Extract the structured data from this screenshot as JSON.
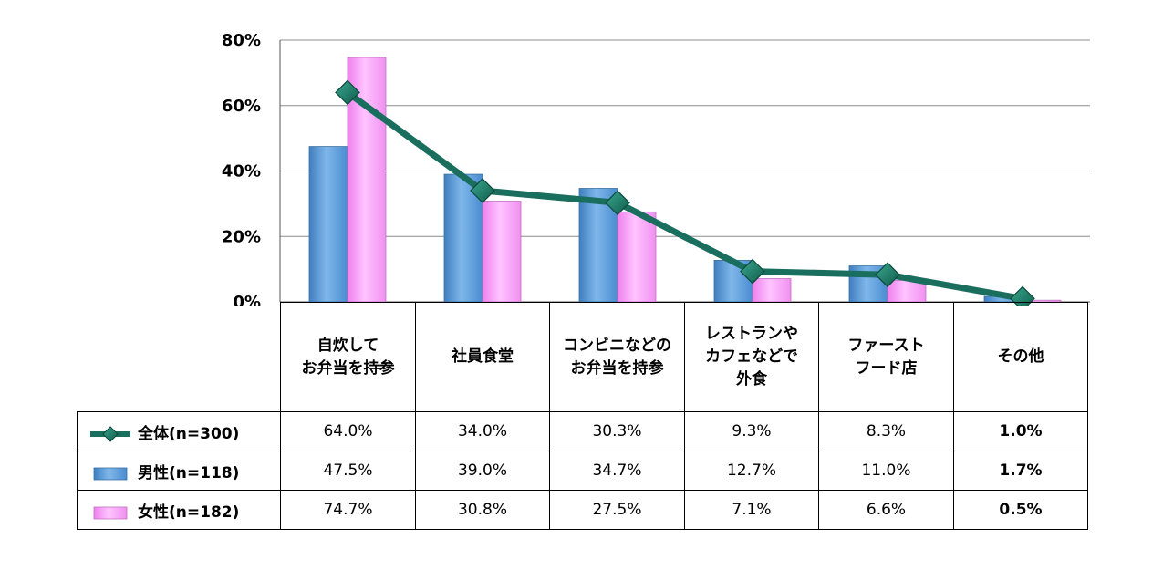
{
  "chart_data": {
    "type": "bar+line",
    "categories": [
      [
        "自炊して",
        "お弁当を持参"
      ],
      [
        "社員食堂"
      ],
      [
        "コンビニなどの",
        "お弁当を持参"
      ],
      [
        "レストランや",
        "カフェなどで",
        "外食"
      ],
      [
        "ファースト",
        "フード店"
      ],
      [
        "その他"
      ]
    ],
    "y_ticks": [
      "0%",
      "20%",
      "40%",
      "60%",
      "80%"
    ],
    "ylim": [
      0,
      80
    ],
    "grid": true,
    "series": [
      {
        "name": "全体(n=300)",
        "kind": "line",
        "color": "#1a6e5e",
        "values": [
          64.0,
          34.0,
          30.3,
          9.3,
          8.3,
          1.0
        ],
        "labels": [
          "64.0%",
          "34.0%",
          "30.3%",
          "9.3%",
          "8.3%",
          "1.0%"
        ]
      },
      {
        "name": "男性(n=118)",
        "kind": "bar",
        "color": "#5b9bd5",
        "values": [
          47.5,
          39.0,
          34.7,
          12.7,
          11.0,
          1.7
        ],
        "labels": [
          "47.5%",
          "39.0%",
          "34.7%",
          "12.7%",
          "11.0%",
          "1.7%"
        ]
      },
      {
        "name": "女性(n=182)",
        "kind": "bar",
        "color": "#f59af5",
        "values": [
          74.7,
          30.8,
          27.5,
          7.1,
          6.6,
          0.5
        ],
        "labels": [
          "74.7%",
          "30.8%",
          "27.5%",
          "7.1%",
          "6.6%",
          "0.5%"
        ]
      }
    ]
  }
}
